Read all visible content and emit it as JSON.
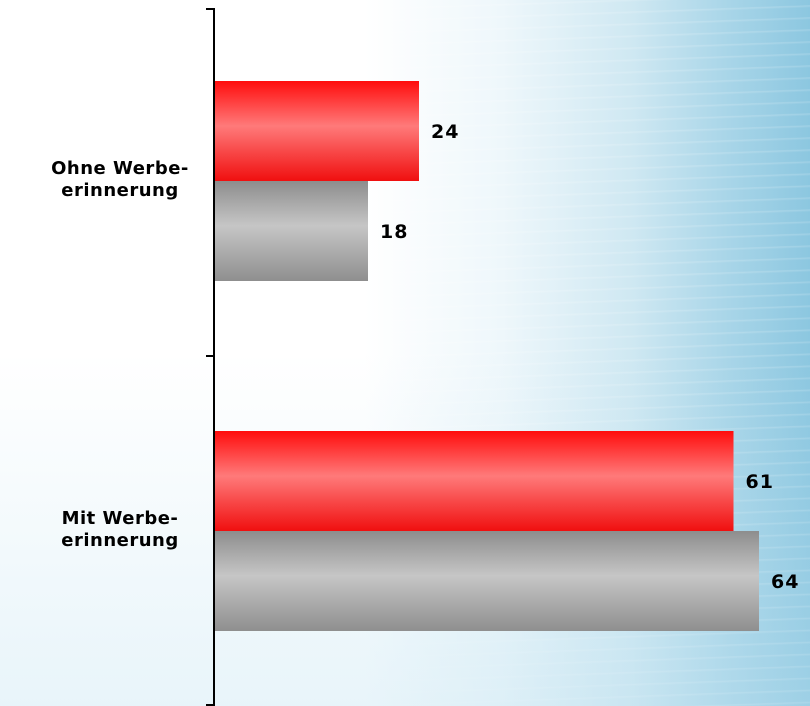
{
  "chart_data": {
    "type": "bar",
    "orientation": "horizontal",
    "categories": [
      [
        "Ohne Werbe-",
        "erinnerung"
      ],
      [
        "Mit Werbe-",
        "erinnerung"
      ]
    ],
    "series": [
      {
        "values": [
          24,
          61
        ],
        "color": "#ff2a2a"
      },
      {
        "values": [
          18,
          64
        ],
        "color": "#9e9e9e"
      }
    ],
    "value_labels": [
      [
        "24",
        "61"
      ],
      [
        "18",
        "64"
      ]
    ],
    "xlim": [
      0,
      64
    ],
    "value_axis_visible": false,
    "grid": false,
    "legend": "none"
  }
}
